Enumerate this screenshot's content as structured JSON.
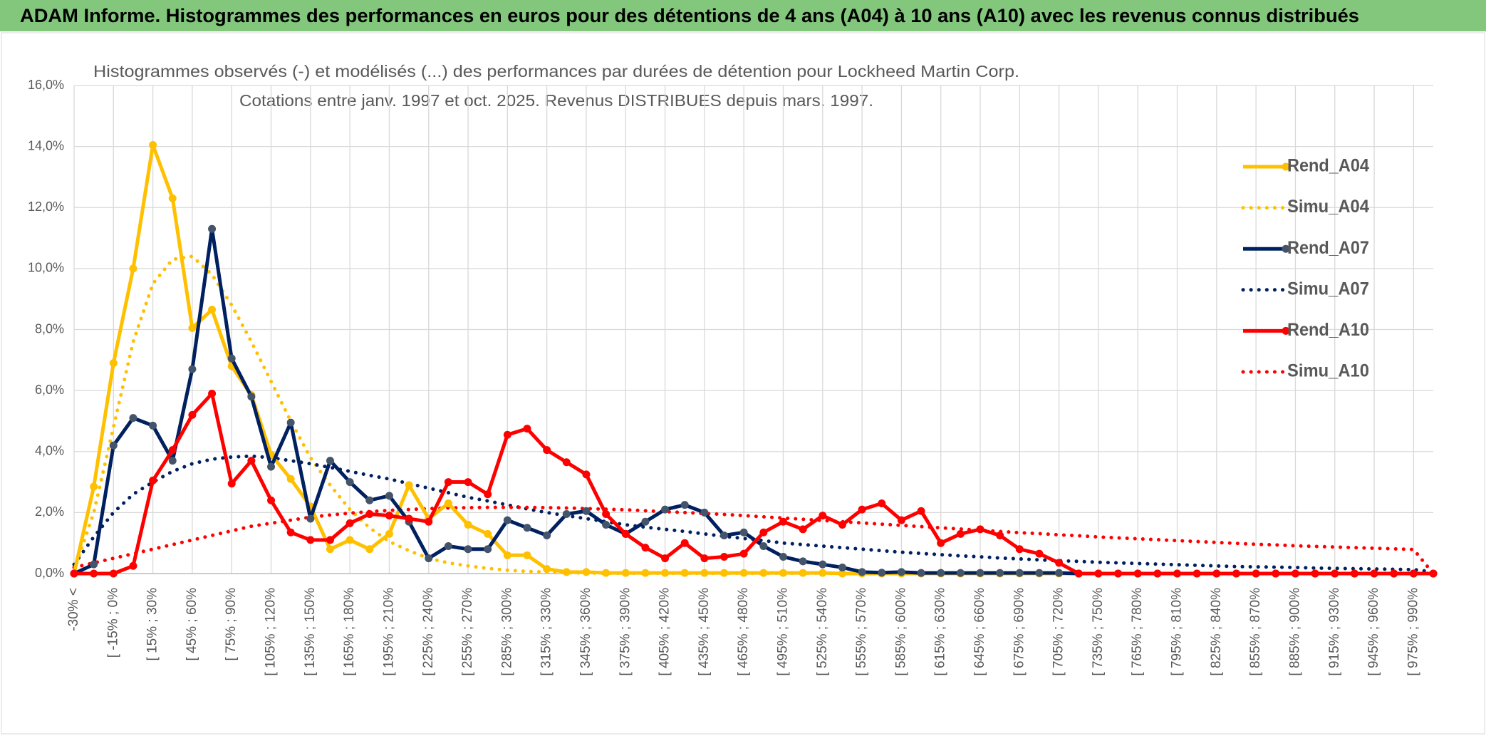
{
  "header": {
    "title": "ADAM Informe. Histogrammes des performances en euros pour des détentions de 4 ans (A04) à 10 ans (A10) avec les revenus connus distribués"
  },
  "chart_data": {
    "type": "line",
    "title": "Histogrammes observés (-) et modélisés (...) des performances par durées de détention pour Lockheed Martin Corp.",
    "subtitle": "Cotations entre janv. 1997 et oct. 2025. Revenus DISTRIBUES depuis mars. 1997.",
    "categories": [
      "-30% <",
      null,
      "[ -15% ; 0%",
      null,
      "[ 15% ; 30%",
      null,
      "[ 45% ; 60%",
      null,
      "[ 75% ; 90%",
      null,
      "[ 105% ; 120%",
      null,
      "[ 135% ; 150%",
      null,
      "[ 165% ; 180%",
      null,
      "[ 195% ; 210%",
      null,
      "[ 225% ; 240%",
      null,
      "[ 255% ; 270%",
      null,
      "[ 285% ; 300%",
      null,
      "[ 315% ; 330%",
      null,
      "[ 345% ; 360%",
      null,
      "[ 375% ; 390%",
      null,
      "[ 405% ; 420%",
      null,
      "[ 435% ; 450%",
      null,
      "[ 465% ; 480%",
      null,
      "[ 495% ; 510%",
      null,
      "[ 525% ; 540%",
      null,
      "[ 555% ; 570%",
      null,
      "[ 585% ; 600%",
      null,
      "[ 615% ; 630%",
      null,
      "[ 645% ; 660%",
      null,
      "[ 675% ; 690%",
      null,
      "[ 705% ; 720%",
      null,
      "[ 735% ; 750%",
      null,
      "[ 765% ; 780%",
      null,
      "[ 795% ; 810%",
      null,
      "[ 825% ; 840%",
      null,
      "[ 855% ; 870%",
      null,
      "[ 885% ; 900%",
      null,
      "[ 915% ; 930%",
      null,
      "[ 945% ; 960%",
      null,
      "[ 975% ; 990%",
      null
    ],
    "series": [
      {
        "name": "Rend_A04",
        "color": "#ffc000",
        "style": "solid",
        "marker": true,
        "values": [
          0,
          2.85,
          6.9,
          10,
          14.05,
          12.3,
          8.05,
          8.65,
          6.8,
          5.85,
          3.9,
          3.1,
          2.2,
          0.8,
          1.1,
          0.8,
          1.3,
          2.9,
          1.8,
          2.3,
          1.6,
          1.3,
          0.6,
          0.6,
          0.15,
          0.05,
          0.05,
          0.02,
          0.02,
          0.02,
          0.02,
          0.02,
          0.02,
          0.02,
          0.02,
          0.02,
          0.02,
          0.02,
          0.02,
          0,
          0,
          0,
          0,
          0,
          0,
          0,
          0,
          0,
          0,
          0,
          0,
          0,
          0,
          0,
          0,
          0,
          0,
          0,
          0,
          0,
          0,
          0,
          0,
          0,
          0,
          0,
          0,
          0,
          0,
          0
        ]
      },
      {
        "name": "Simu_A04",
        "color": "#ffc000",
        "style": "dotted",
        "marker": false,
        "values": [
          0.1,
          2,
          4.8,
          7.6,
          9.5,
          10.3,
          10.4,
          9.8,
          8.8,
          7.6,
          6.3,
          5,
          3.8,
          2.9,
          2.1,
          1.5,
          1.05,
          0.75,
          0.5,
          0.35,
          0.25,
          0.17,
          0.11,
          0.07,
          0.05,
          0.03,
          0.02,
          0.01,
          0.01,
          0.01,
          0.01,
          0.01,
          0.01,
          0.01,
          0.01,
          0.01,
          0.01,
          0.01,
          0.01,
          0,
          0,
          0,
          0,
          0,
          0,
          0,
          0,
          0,
          0,
          0,
          0,
          0,
          0,
          0,
          0,
          0,
          0,
          0,
          0,
          0,
          0,
          0,
          0,
          0,
          0,
          0,
          0,
          0,
          0,
          0
        ]
      },
      {
        "name": "Rend_A07",
        "color": "#002060",
        "marker_color": "#44546a",
        "style": "solid",
        "marker": true,
        "values": [
          0,
          0.3,
          4.2,
          5.1,
          4.85,
          3.7,
          6.7,
          11.3,
          7.05,
          5.8,
          3.5,
          4.95,
          1.8,
          3.7,
          3,
          2.4,
          2.55,
          1.7,
          0.5,
          0.9,
          0.8,
          0.8,
          1.75,
          1.5,
          1.25,
          1.95,
          2.05,
          1.6,
          1.3,
          1.7,
          2.1,
          2.25,
          2,
          1.25,
          1.35,
          0.9,
          0.55,
          0.4,
          0.3,
          0.2,
          0.05,
          0.03,
          0.05,
          0.02,
          0.02,
          0.02,
          0.02,
          0.02,
          0.02,
          0.02,
          0.02,
          0,
          0,
          0,
          0,
          0,
          0,
          0,
          0,
          0,
          0,
          0,
          0,
          0,
          0,
          0,
          0,
          0,
          0,
          0
        ]
      },
      {
        "name": "Simu_A07",
        "color": "#002060",
        "style": "dotted",
        "marker": false,
        "values": [
          0.3,
          1.2,
          2,
          2.6,
          3,
          3.35,
          3.6,
          3.75,
          3.82,
          3.85,
          3.8,
          3.7,
          3.6,
          3.48,
          3.35,
          3.22,
          3.1,
          2.95,
          2.8,
          2.65,
          2.5,
          2.38,
          2.25,
          2.12,
          2,
          1.9,
          1.8,
          1.7,
          1.6,
          1.52,
          1.45,
          1.38,
          1.3,
          1.22,
          1.15,
          1.08,
          1,
          0.95,
          0.9,
          0.85,
          0.8,
          0.75,
          0.7,
          0.66,
          0.62,
          0.58,
          0.55,
          0.51,
          0.48,
          0.45,
          0.42,
          0.4,
          0.37,
          0.35,
          0.33,
          0.31,
          0.29,
          0.27,
          0.25,
          0.23,
          0.22,
          0.21,
          0.2,
          0.18,
          0.17,
          0.16,
          0.15,
          0.14,
          0.13,
          0.05
        ]
      },
      {
        "name": "Rend_A10",
        "color": "#ff0000",
        "style": "solid",
        "marker": true,
        "values": [
          0,
          0,
          0,
          0.25,
          3.05,
          4.05,
          5.2,
          5.9,
          2.95,
          3.7,
          2.4,
          1.35,
          1.1,
          1.1,
          1.65,
          1.95,
          1.9,
          1.8,
          1.7,
          3,
          3,
          2.6,
          4.55,
          4.75,
          4.05,
          3.65,
          3.25,
          1.95,
          1.3,
          0.85,
          0.5,
          1,
          0.5,
          0.55,
          0.65,
          1.35,
          1.7,
          1.45,
          1.9,
          1.6,
          2.1,
          2.3,
          1.75,
          2.05,
          1,
          1.3,
          1.45,
          1.25,
          0.8,
          0.65,
          0.35,
          0,
          0,
          0,
          0,
          0,
          0,
          0,
          0,
          0,
          0,
          0,
          0,
          0,
          0,
          0,
          0,
          0,
          0,
          0
        ]
      },
      {
        "name": "Simu_A10",
        "color": "#ff0000",
        "style": "dotted",
        "marker": false,
        "values": [
          0.2,
          0.35,
          0.5,
          0.65,
          0.8,
          0.95,
          1.1,
          1.25,
          1.4,
          1.55,
          1.65,
          1.75,
          1.85,
          1.92,
          1.98,
          2.03,
          2.07,
          2.1,
          2.13,
          2.15,
          2.16,
          2.17,
          2.17,
          2.17,
          2.16,
          2.15,
          2.13,
          2.11,
          2.09,
          2.06,
          2.03,
          2,
          1.97,
          1.94,
          1.9,
          1.86,
          1.82,
          1.78,
          1.74,
          1.7,
          1.66,
          1.62,
          1.58,
          1.54,
          1.5,
          1.46,
          1.42,
          1.38,
          1.34,
          1.31,
          1.27,
          1.24,
          1.2,
          1.17,
          1.14,
          1.11,
          1.08,
          1.05,
          1.02,
          0.99,
          0.96,
          0.94,
          0.91,
          0.89,
          0.87,
          0.85,
          0.83,
          0.81,
          0.79,
          0
        ]
      }
    ],
    "ylim": [
      0,
      16
    ],
    "yticks": [
      {
        "value": 0,
        "label": "0,0%"
      },
      {
        "value": 2,
        "label": "2,0%"
      },
      {
        "value": 4,
        "label": "4,0%"
      },
      {
        "value": 6,
        "label": "6,0%"
      },
      {
        "value": 8,
        "label": "8,0%"
      },
      {
        "value": 10,
        "label": "10,0%"
      },
      {
        "value": 12,
        "label": "12,0%"
      },
      {
        "value": 14,
        "label": "14,0%"
      },
      {
        "value": 16,
        "label": "16,0%"
      }
    ],
    "grid": true,
    "legend": "right"
  }
}
